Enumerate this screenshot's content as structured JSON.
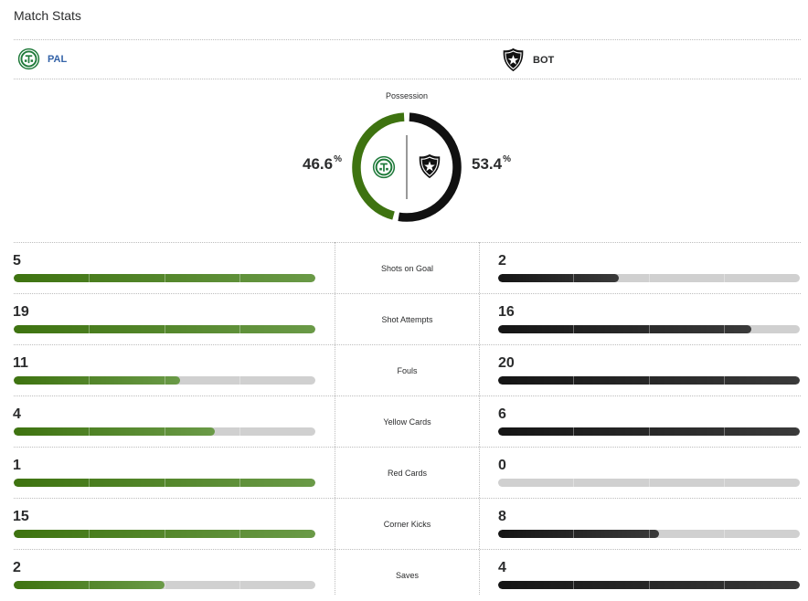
{
  "title": "Match Stats",
  "home": {
    "abbr": "PAL",
    "logo": "palmeiras-crest-icon",
    "color": "#3e7310"
  },
  "away": {
    "abbr": "BOT",
    "logo": "botafogo-star-shield-icon",
    "color": "#111111"
  },
  "possession": {
    "label": "Possession",
    "home_value": "46.6",
    "away_value": "53.4",
    "unit": "%",
    "home_fraction": 0.466,
    "away_fraction": 0.534
  },
  "stats": [
    {
      "label": "Shots on Goal",
      "home": "5",
      "away": "2",
      "home_fraction": 1.0,
      "away_fraction": 0.4
    },
    {
      "label": "Shot Attempts",
      "home": "19",
      "away": "16",
      "home_fraction": 1.0,
      "away_fraction": 0.84
    },
    {
      "label": "Fouls",
      "home": "11",
      "away": "20",
      "home_fraction": 0.55,
      "away_fraction": 1.0
    },
    {
      "label": "Yellow Cards",
      "home": "4",
      "away": "6",
      "home_fraction": 0.667,
      "away_fraction": 1.0
    },
    {
      "label": "Red Cards",
      "home": "1",
      "away": "0",
      "home_fraction": 1.0,
      "away_fraction": 0.0
    },
    {
      "label": "Corner Kicks",
      "home": "15",
      "away": "8",
      "home_fraction": 1.0,
      "away_fraction": 0.533
    },
    {
      "label": "Saves",
      "home": "2",
      "away": "4",
      "home_fraction": 0.5,
      "away_fraction": 1.0
    }
  ]
}
